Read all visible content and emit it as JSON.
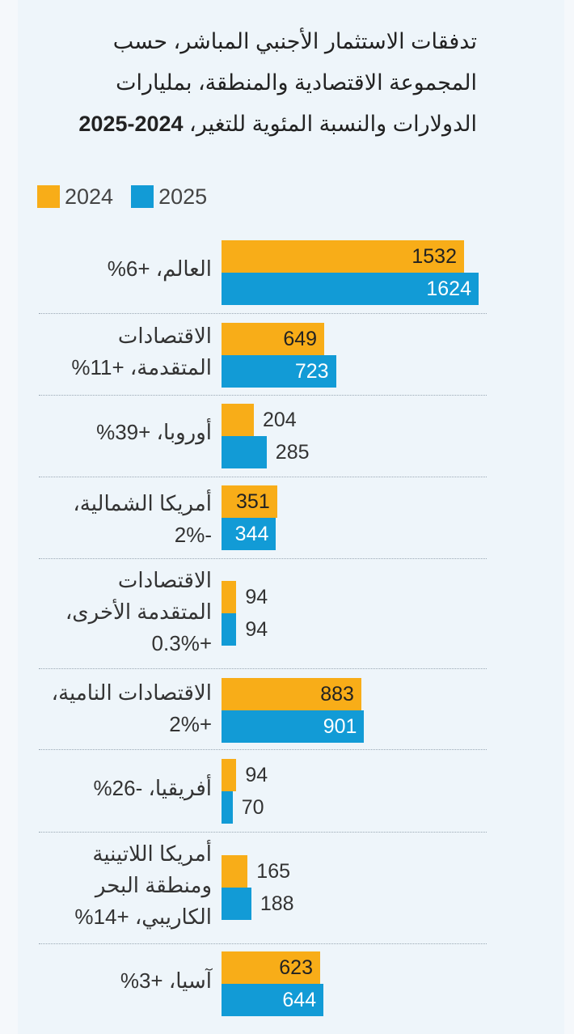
{
  "title_lines": [
    "تدفقات الاستثمار الأجنبي المباشر، حسب",
    "المجموعة الاقتصادية والمنطقة، بمليارات",
    "الدولارات والنسبة المئوية للتغير، "
  ],
  "title_years": "2024-2025",
  "legend": [
    {
      "label": "2024",
      "color": "#f8ad18"
    },
    {
      "label": "2025",
      "color": "#129bd6"
    }
  ],
  "chart_data": {
    "type": "bar",
    "orientation": "horizontal",
    "title": "تدفقات الاستثمار الأجنبي المباشر، حسب المجموعة الاقتصادية والمنطقة، بمليارات الدولارات والنسبة المئوية للتغير، 2024-2025",
    "categories": [
      "العالم، +6%",
      "الاقتصادات المتقدمة، +11%",
      "أوروبا، +39%",
      "أمريكا الشمالية، -2%",
      "الاقتصادات المتقدمة الأخرى، +0.3%",
      "الاقتصادات النامية، +2%",
      "أفريقيا، -26%",
      "أمريكا اللاتينية ومنطقة البحر الكاريبي، +14%",
      "آسيا، +3%"
    ],
    "category_lines": [
      [
        "العالم، +6%"
      ],
      [
        "الاقتصادات",
        "المتقدمة، +11%"
      ],
      [
        "أوروبا، +39%"
      ],
      [
        "أمريكا الشمالية،",
        "-2%"
      ],
      [
        "الاقتصادات",
        "المتقدمة الأخرى،",
        "+0.3%"
      ],
      [
        "الاقتصادات النامية،",
        "+2%"
      ],
      [
        "أفريقيا، -26%"
      ],
      [
        "أمريكا اللاتينية",
        "ومنطقة البحر",
        "الكاريبي، +14%"
      ],
      [
        "آسيا، +3%"
      ]
    ],
    "series": [
      {
        "name": "2024",
        "color": "#f8ad18",
        "values": [
          1532,
          649,
          204,
          351,
          94,
          883,
          94,
          165,
          623
        ]
      },
      {
        "name": "2025",
        "color": "#129bd6",
        "values": [
          1624,
          723,
          285,
          344,
          94,
          901,
          70,
          188,
          644
        ]
      }
    ],
    "xlim": [
      0,
      1624
    ],
    "legend_position": "top-left",
    "grid": false
  }
}
